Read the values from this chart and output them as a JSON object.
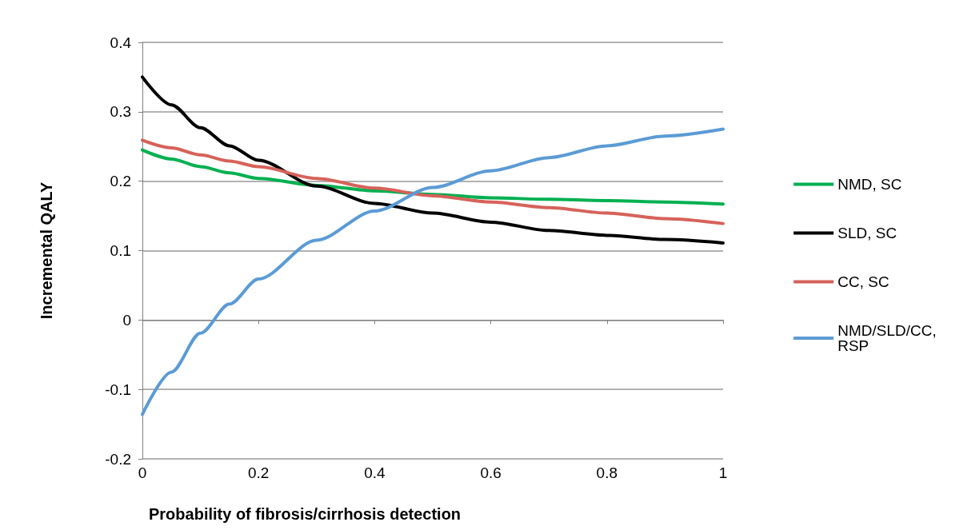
{
  "chart_data": {
    "type": "line",
    "xlabel": "Probability of fibrosis/cirrhosis detection",
    "ylabel": "Incremental QALY",
    "x": [
      0,
      0.05,
      0.1,
      0.15,
      0.2,
      0.3,
      0.4,
      0.5,
      0.6,
      0.7,
      0.8,
      0.9,
      1
    ],
    "series": [
      {
        "name": "NMD, SC",
        "color": "#00b050",
        "values": [
          0.245,
          0.232,
          0.221,
          0.212,
          0.204,
          0.194,
          0.186,
          0.181,
          0.176,
          0.174,
          0.172,
          0.17,
          0.167
        ]
      },
      {
        "name": "SLD, SC",
        "color": "#000000",
        "values": [
          0.35,
          0.31,
          0.277,
          0.251,
          0.23,
          0.193,
          0.168,
          0.154,
          0.141,
          0.129,
          0.122,
          0.116,
          0.111
        ]
      },
      {
        "name": "CC, SC",
        "color": "#d6625a",
        "values": [
          0.259,
          0.248,
          0.238,
          0.229,
          0.221,
          0.204,
          0.19,
          0.179,
          0.17,
          0.162,
          0.154,
          0.146,
          0.139
        ]
      },
      {
        "name": "NMD/SLD/CC, RSP",
        "color": "#5b9bd5",
        "values": [
          -0.136,
          -0.075,
          -0.019,
          0.023,
          0.059,
          0.115,
          0.157,
          0.191,
          0.215,
          0.234,
          0.251,
          0.265,
          0.275
        ]
      }
    ],
    "xlim": [
      0,
      1
    ],
    "xticks": [
      0,
      0.2,
      0.4,
      0.6,
      0.8,
      1
    ],
    "ylim": [
      -0.2,
      0.4
    ],
    "yticks": [
      -0.2,
      -0.1,
      0,
      0.1,
      0.2,
      0.3,
      0.4
    ],
    "grid": "y",
    "legend": "right",
    "marker": "none",
    "line_style": "solid"
  }
}
